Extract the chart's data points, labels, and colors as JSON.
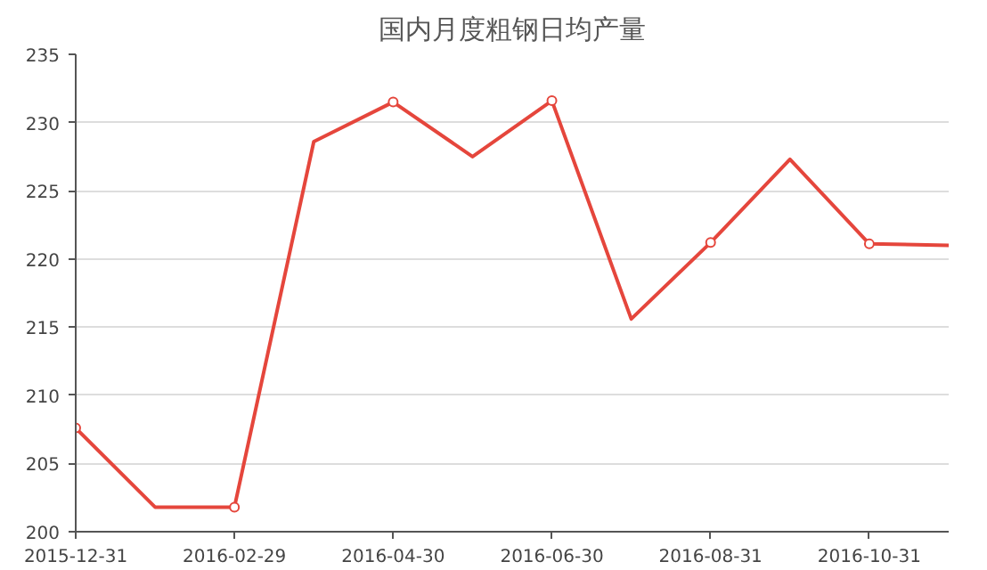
{
  "chart_data": {
    "type": "line",
    "title": "国内月度粗钢日均产量",
    "categories": [
      "2015-12-31",
      null,
      "2016-02-29",
      null,
      "2016-04-30",
      null,
      "2016-06-30",
      null,
      "2016-08-31",
      null,
      "2016-10-31",
      null
    ],
    "series": [
      {
        "color": "#e5463c",
        "values": [
          207.6,
          201.8,
          201.8,
          228.6,
          231.5,
          227.5,
          231.6,
          215.6,
          221.2,
          227.3,
          221.1,
          221.0
        ]
      }
    ],
    "ylim": [
      200,
      235
    ],
    "yticks": [
      200,
      205,
      210,
      215,
      220,
      225,
      230,
      235
    ],
    "grid": "y",
    "marker": "circle",
    "line_style": "solid"
  }
}
